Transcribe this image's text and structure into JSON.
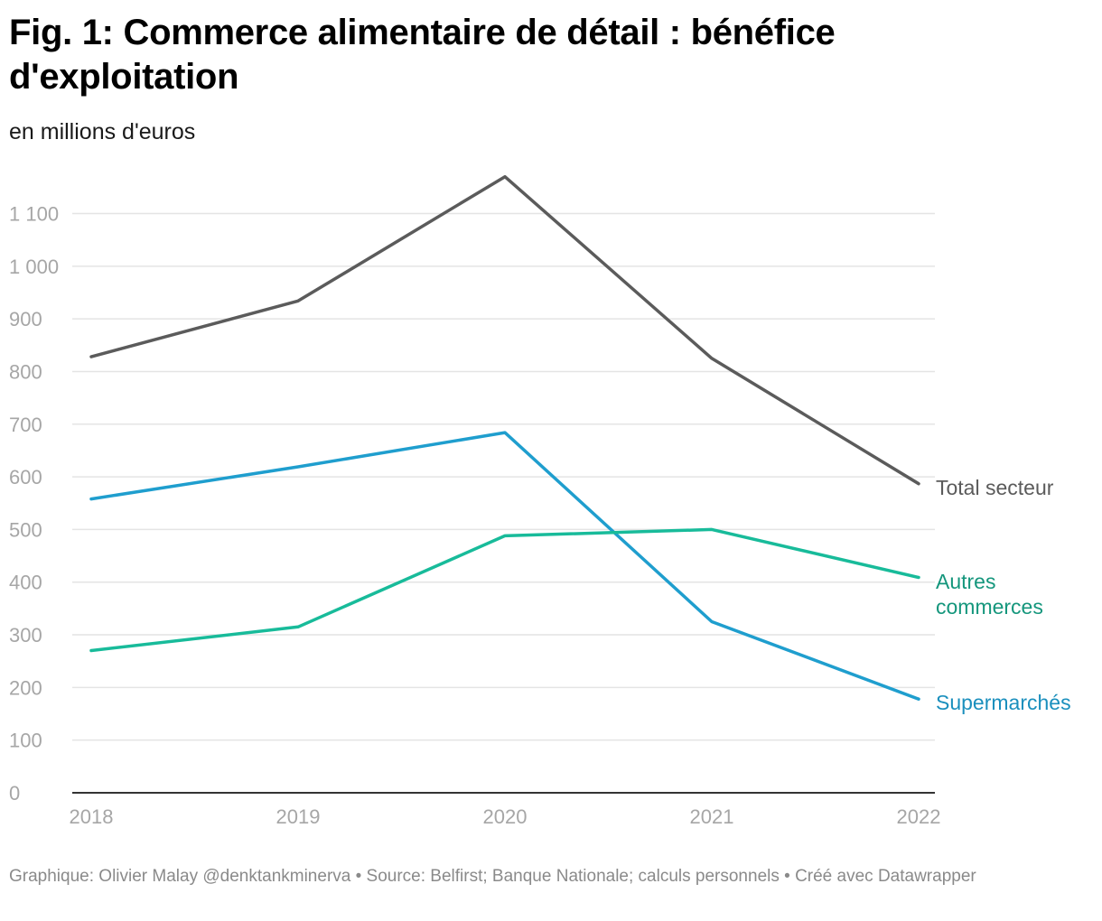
{
  "header": {
    "title": "Fig. 1: Commerce alimentaire de détail : bénéfice d'exploitation",
    "subtitle": "en millions d'euros"
  },
  "footer": {
    "credit": "Graphique: Olivier Malay @denktankminerva • Source: Belfirst; Banque Nationale; calculs personnels • Créé avec Datawrapper"
  },
  "chart_data": {
    "type": "line",
    "title": "Fig. 1: Commerce alimentaire de détail : bénéfice d'exploitation",
    "subtitle": "en millions d'euros",
    "xlabel": "",
    "ylabel": "",
    "x": [
      "2018",
      "2019",
      "2020",
      "2021",
      "2022"
    ],
    "ylim": [
      0,
      1100
    ],
    "yticks": [
      0,
      100,
      200,
      300,
      400,
      500,
      600,
      700,
      800,
      900,
      1000,
      1100
    ],
    "ytick_labels": [
      "0",
      "100",
      "200",
      "300",
      "400",
      "500",
      "600",
      "700",
      "800",
      "900",
      "1 000",
      "1 100"
    ],
    "grid": true,
    "legend": "direct labels at line ends",
    "series": [
      {
        "name": "Total secteur",
        "label_lines": [
          "Total secteur"
        ],
        "color": "#5b5b5b",
        "label_color": "#5b5b5b",
        "values": [
          828,
          934,
          1170,
          825,
          587
        ]
      },
      {
        "name": "Supermarchés",
        "label_lines": [
          "Supermarchés"
        ],
        "color": "#1f9ece",
        "label_color": "#1a8fbd",
        "values": [
          558,
          619,
          684,
          325,
          178
        ]
      },
      {
        "name": "Autres commerces",
        "label_lines": [
          "Autres",
          "commerces"
        ],
        "color": "#18bb9a",
        "label_color": "#14967c",
        "values": [
          270,
          315,
          488,
          500,
          409
        ]
      }
    ]
  }
}
